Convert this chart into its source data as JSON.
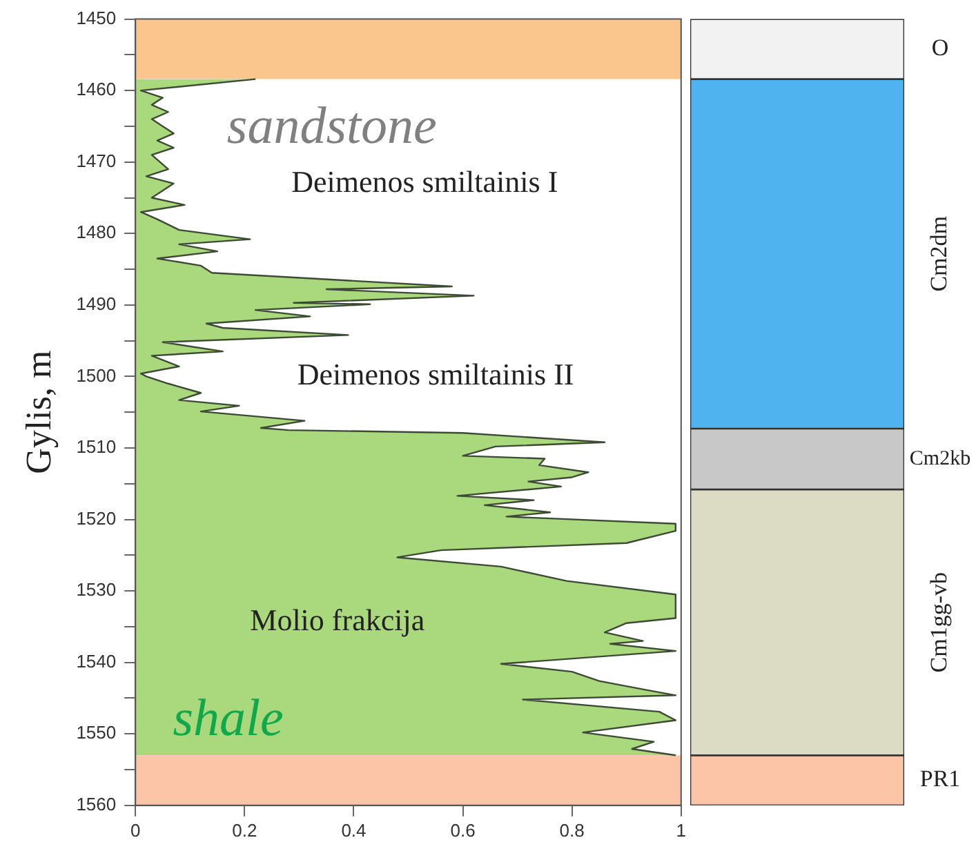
{
  "chart_data": [
    {
      "type": "area",
      "orientation": "horizontal",
      "ylabel": "Gylis, m",
      "color": "#a9d97c",
      "x": [
        1458.4,
        1460,
        1461,
        1462,
        1463,
        1464,
        1465,
        1466,
        1467,
        1468,
        1469,
        1471,
        1472,
        1473,
        1475,
        1476,
        1477,
        1478,
        1479.5,
        1480.8,
        1481.5,
        1482.5,
        1483.5,
        1484.5,
        1485.5,
        1487.4,
        1487.8,
        1488.7,
        1489.7,
        1489.9,
        1490.7,
        1491.6,
        1492.6,
        1493.2,
        1494.2,
        1495.2,
        1496.5,
        1497.1,
        1498.6,
        1499.6,
        1500,
        1501,
        1502.3,
        1503.3,
        1504.1,
        1504.9,
        1506.2,
        1507.2,
        1507.5,
        1507.9,
        1509.2,
        1509.8,
        1511.1,
        1511.5,
        1512.4,
        1513.4,
        1514.1,
        1514.7,
        1515.4,
        1516.7,
        1517.3,
        1518,
        1519,
        1519.6,
        1520.6,
        1521.6,
        1523.3,
        1524.3,
        1525.3,
        1526.6,
        1528.6,
        1530.5,
        1533.8,
        1534.5,
        1535.8,
        1537,
        1537.4,
        1538.4,
        1540.2,
        1541.3,
        1542.6,
        1543.9,
        1544.6,
        1545.2,
        1546.9,
        1548.1,
        1549.8,
        1551.1,
        1552.1,
        1553
      ],
      "values": [
        0.22,
        0.01,
        0.05,
        0.03,
        0.06,
        0.03,
        0.05,
        0.07,
        0.04,
        0.07,
        0.03,
        0.06,
        0.02,
        0.07,
        0.03,
        0.09,
        0.01,
        0.04,
        0.08,
        0.21,
        0.08,
        0.15,
        0.04,
        0.12,
        0.14,
        0.58,
        0.35,
        0.62,
        0.29,
        0.43,
        0.22,
        0.32,
        0.13,
        0.16,
        0.39,
        0.05,
        0.16,
        0.03,
        0.08,
        0.01,
        0.02,
        0.06,
        0.12,
        0.08,
        0.19,
        0.12,
        0.31,
        0.23,
        0.28,
        0.6,
        0.86,
        0.66,
        0.6,
        0.75,
        0.74,
        0.83,
        0.8,
        0.72,
        0.78,
        0.59,
        0.73,
        0.64,
        0.76,
        0.68,
        0.99,
        0.99,
        0.9,
        0.56,
        0.48,
        0.67,
        0.79,
        0.99,
        0.99,
        0.9,
        0.86,
        0.93,
        0.87,
        0.99,
        0.67,
        0.8,
        0.85,
        0.94,
        0.99,
        0.71,
        0.96,
        0.99,
        0.82,
        0.95,
        0.91,
        0.99
      ],
      "xlim": [
        0,
        1
      ],
      "xticks": [
        0,
        0.2,
        0.4,
        0.6,
        0.8,
        1
      ],
      "ylim": [
        1560,
        1450
      ],
      "yticks": [
        1450,
        {
          "value": 1455,
          "label": null
        },
        1460,
        {
          "value": 1465,
          "label": null
        },
        1470,
        {
          "value": 1475,
          "label": null
        },
        1480,
        {
          "value": 1485,
          "label": null
        },
        1490,
        {
          "value": 1495,
          "label": null
        },
        1500,
        {
          "value": 1505,
          "label": null
        },
        1510,
        {
          "value": 1515,
          "label": null
        },
        1520,
        {
          "value": 1525,
          "label": null
        },
        1530,
        {
          "value": 1535,
          "label": null
        },
        1540,
        {
          "value": 1545,
          "label": null
        },
        1550,
        {
          "value": 1555,
          "label": null
        },
        1560
      ],
      "bands": [
        {
          "axis": "y",
          "from": 1450,
          "to": 1458.4,
          "color": "#fbc58e"
        },
        {
          "axis": "y",
          "from": 1553,
          "to": 1560,
          "color": "#fcc5a8"
        }
      ],
      "annotations": [
        "sandstone",
        "Deimenos smiltainis I",
        "Deimenos smiltainis II",
        "Molio frakcija",
        "shale"
      ]
    },
    {
      "type": "bar",
      "categories": [
        null
      ],
      "ylim": [
        1560,
        1450
      ],
      "tick_labels": false,
      "series": [
        {
          "name": "O",
          "color": "#f2f2f2",
          "values": [
            8.4
          ],
          "base": [
            1450
          ]
        },
        {
          "name": "Cm2dm",
          "color": "#4fb3f0",
          "values": [
            48.9
          ],
          "base": [
            1458.4
          ]
        },
        {
          "name": "Cm2kb",
          "color": "#c8c8c8",
          "values": [
            8.5
          ],
          "base": [
            1507.3
          ]
        },
        {
          "name": "Cm1gg-vb",
          "color": "#dcdcc4",
          "values": [
            37.2
          ],
          "base": [
            1515.8
          ]
        },
        {
          "name": "PR1",
          "color": "#fcc5a8",
          "values": [
            7
          ],
          "base": [
            1553
          ]
        }
      ]
    }
  ]
}
